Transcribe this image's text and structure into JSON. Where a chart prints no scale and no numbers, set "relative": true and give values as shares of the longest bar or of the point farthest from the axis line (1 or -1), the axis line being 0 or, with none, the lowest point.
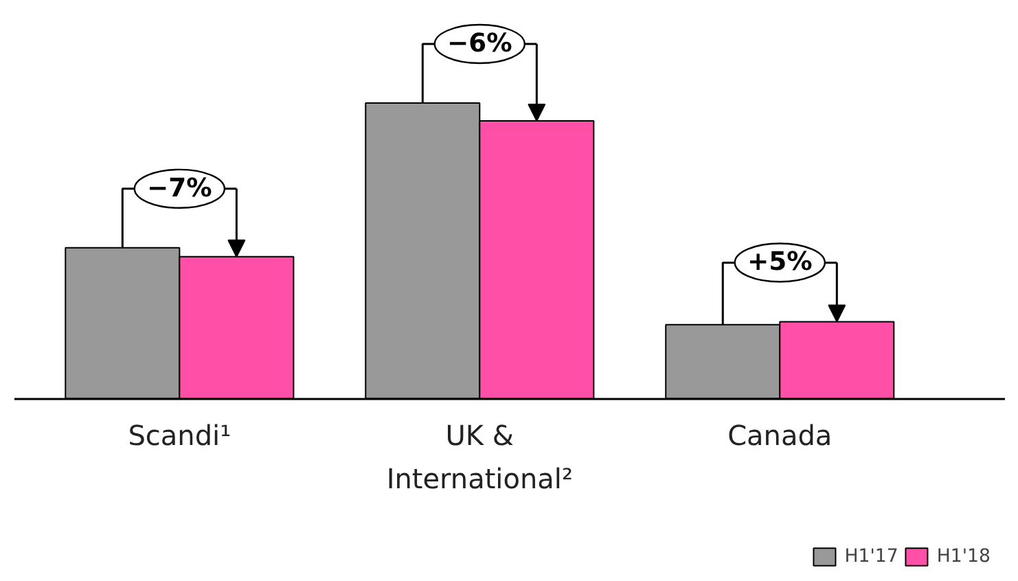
{
  "chart_data": {
    "type": "bar",
    "relative": true,
    "categories": [
      "Scandi¹",
      "UK &\nInternational²",
      "Canada"
    ],
    "series": [
      {
        "name": "H1'17",
        "color": "#999999",
        "values": [
          0.51,
          1.0,
          0.25
        ]
      },
      {
        "name": "H1'18",
        "color": "#ff4fa7",
        "values": [
          0.48,
          0.94,
          0.26
        ]
      }
    ],
    "annotations": [
      "−7%",
      "−6%",
      "+5%"
    ],
    "legend": "bottom right"
  }
}
